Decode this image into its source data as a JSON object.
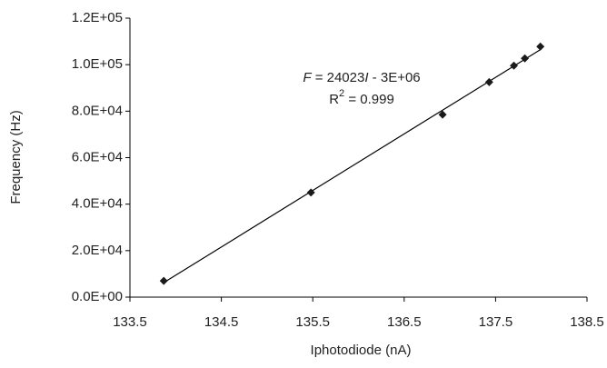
{
  "chart_data": {
    "type": "scatter",
    "x_label": "Iphotodiode (nA)",
    "y_label": "Frequency (Hz)",
    "equation": [
      "F",
      " = 24023",
      "I",
      " - 3E+06"
    ],
    "r_squared": [
      "R",
      "2",
      " = 0.999"
    ],
    "trendline": true,
    "color": "#1a1a1a",
    "x": [
      133.87,
      135.48,
      136.92,
      137.43,
      137.7,
      137.82,
      137.99
    ],
    "values": [
      7000,
      45000,
      78500,
      92500,
      99600,
      102700,
      107800
    ],
    "xlim": [
      133.5,
      138.5
    ],
    "xticks": [
      133.5,
      134.5,
      135.5,
      136.5,
      137.5,
      138.5
    ],
    "ylim": [
      0,
      120000
    ],
    "yticks": [
      {
        "value": 0,
        "label": "0.0E+00"
      },
      {
        "value": 20000,
        "label": "2.0E+04"
      },
      {
        "value": 40000,
        "label": "4.0E+04"
      },
      {
        "value": 60000,
        "label": "6.0E+04"
      },
      {
        "value": 80000,
        "label": "8.0E+04"
      },
      {
        "value": 100000,
        "label": "1.0E+05"
      },
      {
        "value": 120000,
        "label": "1.2E+05"
      }
    ],
    "grid": false
  }
}
